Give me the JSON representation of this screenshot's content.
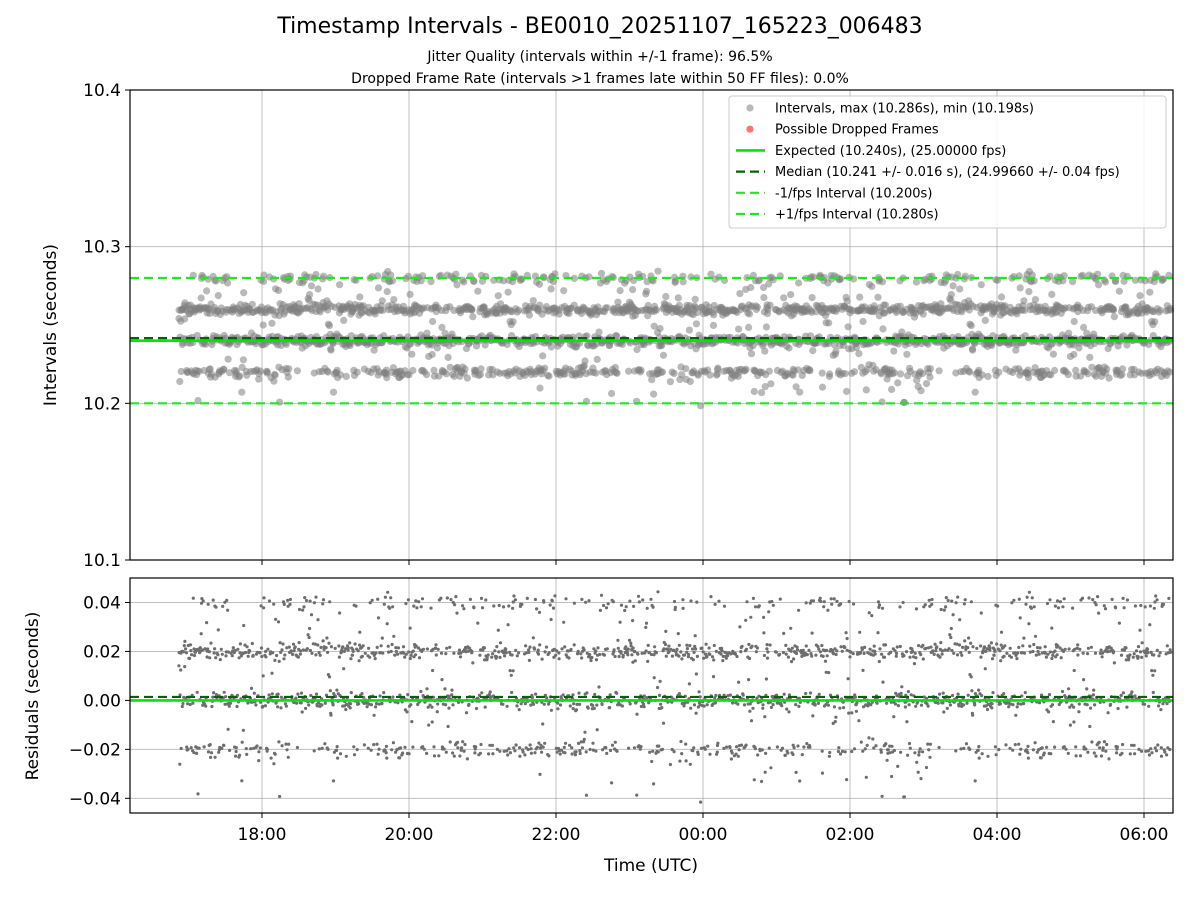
{
  "title": "Timestamp Intervals - BE0010_20251107_165223_006483",
  "subtitle1": "Jitter Quality (intervals within +/-1 frame): 96.5%",
  "subtitle2": "Dropped Frame Rate (intervals >1 frames late within 50 FF files): 0.0%",
  "chart_data": [
    {
      "type": "scatter",
      "ylabel": "Intervals (seconds)",
      "ylim": [
        10.1,
        10.4
      ],
      "yticks": [
        "10.1",
        "10.2",
        "10.3",
        "10.4"
      ],
      "yticks_values": [
        10.1,
        10.2,
        10.3,
        10.4
      ],
      "grid": true,
      "legend_position": "top-right",
      "x_range_utc": [
        "16:12",
        "06:22"
      ],
      "x_data_start": "16:52",
      "x_data_end": "06:22",
      "interval_levels": [
        10.22,
        10.24,
        10.26,
        10.28
      ],
      "interval_level_weights": [
        0.2,
        0.35,
        0.35,
        0.1
      ],
      "max_interval": 10.286,
      "min_interval": 10.198,
      "expected": 10.24,
      "median": 10.241,
      "minus_interval": 10.2,
      "plus_interval": 10.28,
      "legend": [
        {
          "label": "Intervals, max (10.286s), min (10.198s)",
          "color": "#808080",
          "marker": "dot"
        },
        {
          "label": "Possible Dropped Frames",
          "color": "#ff0000",
          "marker": "dot"
        },
        {
          "label": "Expected (10.240s), (25.00000 fps)",
          "color": "#00e600",
          "marker": "line"
        },
        {
          "label": "Median (10.241 +/- 0.016 s), (24.99660 +/- 0.04 fps)",
          "color": "#006400",
          "marker": "dash"
        },
        {
          "label": "-1/fps Interval (10.200s)",
          "color": "#1ee81e",
          "marker": "dash"
        },
        {
          "label": "+1/fps Interval (10.280s)",
          "color": "#1ee81e",
          "marker": "dash"
        }
      ],
      "series_colors": {
        "intervals": "#808080",
        "dropped": "#ff0000",
        "expected": "#00e600",
        "median": "#006400",
        "bounds": "#1ee81e"
      }
    },
    {
      "type": "scatter",
      "xlabel": "Time (UTC)",
      "ylabel": "Residuals (seconds)",
      "ylim": [
        -0.046,
        0.05
      ],
      "yticks": [
        "−0.04",
        "−0.02",
        "0.00",
        "0.02",
        "0.04"
      ],
      "yticks_values": [
        -0.04,
        -0.02,
        0.0,
        0.02,
        0.04
      ],
      "xticks": [
        "18:00",
        "20:00",
        "22:00",
        "00:00",
        "02:00",
        "04:00",
        "06:00"
      ],
      "grid": true,
      "residual_levels": [
        -0.02,
        0.0,
        0.02,
        0.04
      ],
      "zero_line": 0.0,
      "median_line": 0.001
    }
  ]
}
